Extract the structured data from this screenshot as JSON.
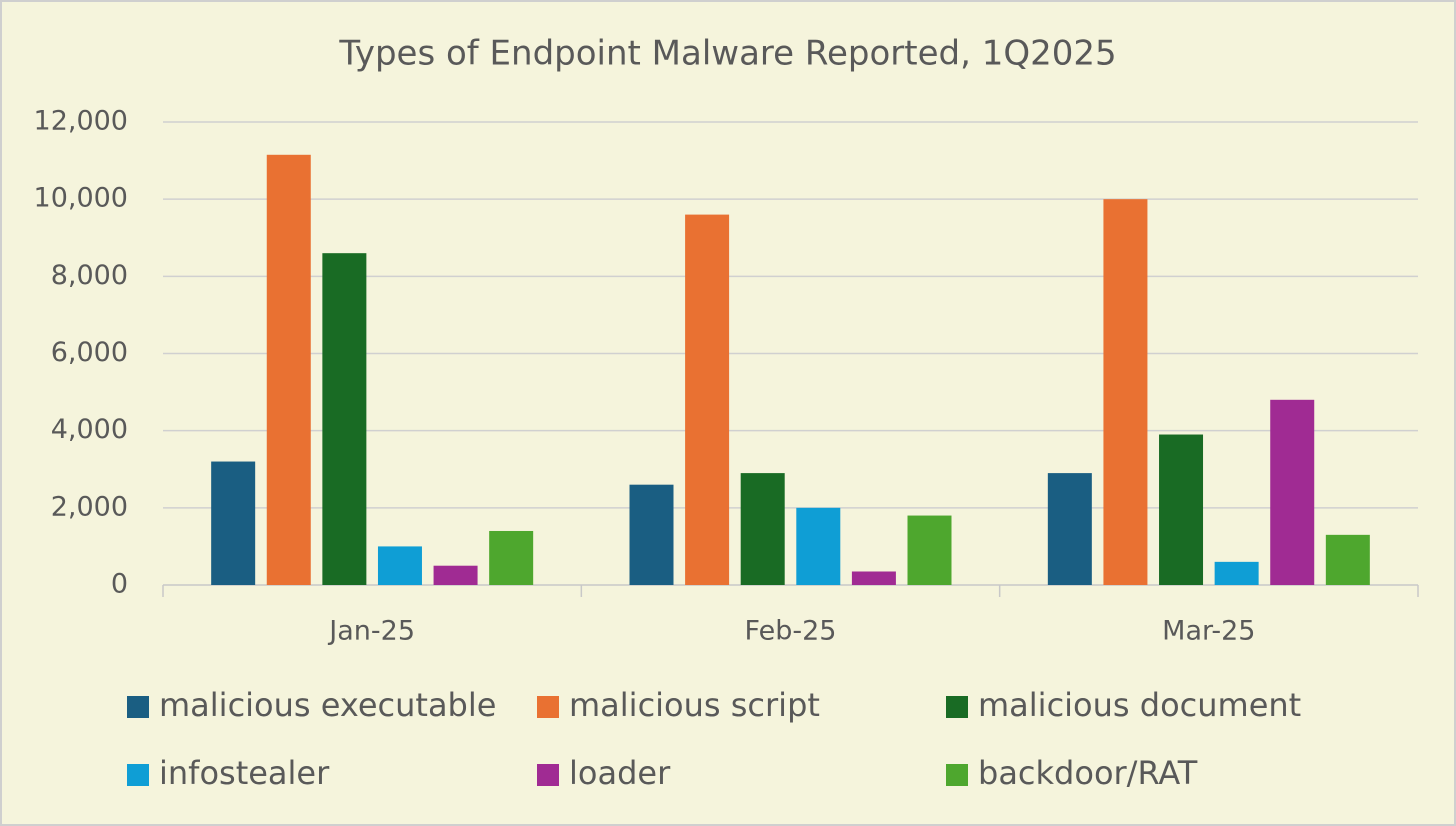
{
  "chart_data": {
    "type": "bar",
    "title": "Types of Endpoint Malware Reported, 1Q2025",
    "categories": [
      "Jan-25",
      "Feb-25",
      "Mar-25"
    ],
    "series": [
      {
        "name": "malicious executable",
        "color": "#1a5e82",
        "values": [
          3200,
          2600,
          2900
        ]
      },
      {
        "name": "malicious script",
        "color": "#e97132",
        "values": [
          11150,
          9600,
          10000
        ]
      },
      {
        "name": "malicious document",
        "color": "#196b24",
        "values": [
          8600,
          2900,
          3900
        ]
      },
      {
        "name": "infostealer",
        "color": "#0f9ed5",
        "values": [
          1000,
          2000,
          600
        ]
      },
      {
        "name": "loader",
        "color": "#a02b93",
        "values": [
          500,
          350,
          4800
        ]
      },
      {
        "name": "backdoor/RAT",
        "color": "#4ea72e",
        "values": [
          1400,
          1800,
          1300
        ]
      }
    ],
    "ylim": [
      0,
      12000
    ],
    "yticks": [
      0,
      {
        "value": 2000,
        "label": "2,000"
      },
      {
        "value": 4000,
        "label": "4,000"
      },
      {
        "value": 6000,
        "label": "6,000"
      },
      {
        "value": 8000,
        "label": "8,000"
      },
      {
        "value": 10000,
        "label": "10,000"
      },
      {
        "value": 12000,
        "label": "12,000"
      }
    ],
    "grid": true,
    "legend": "bottom"
  }
}
